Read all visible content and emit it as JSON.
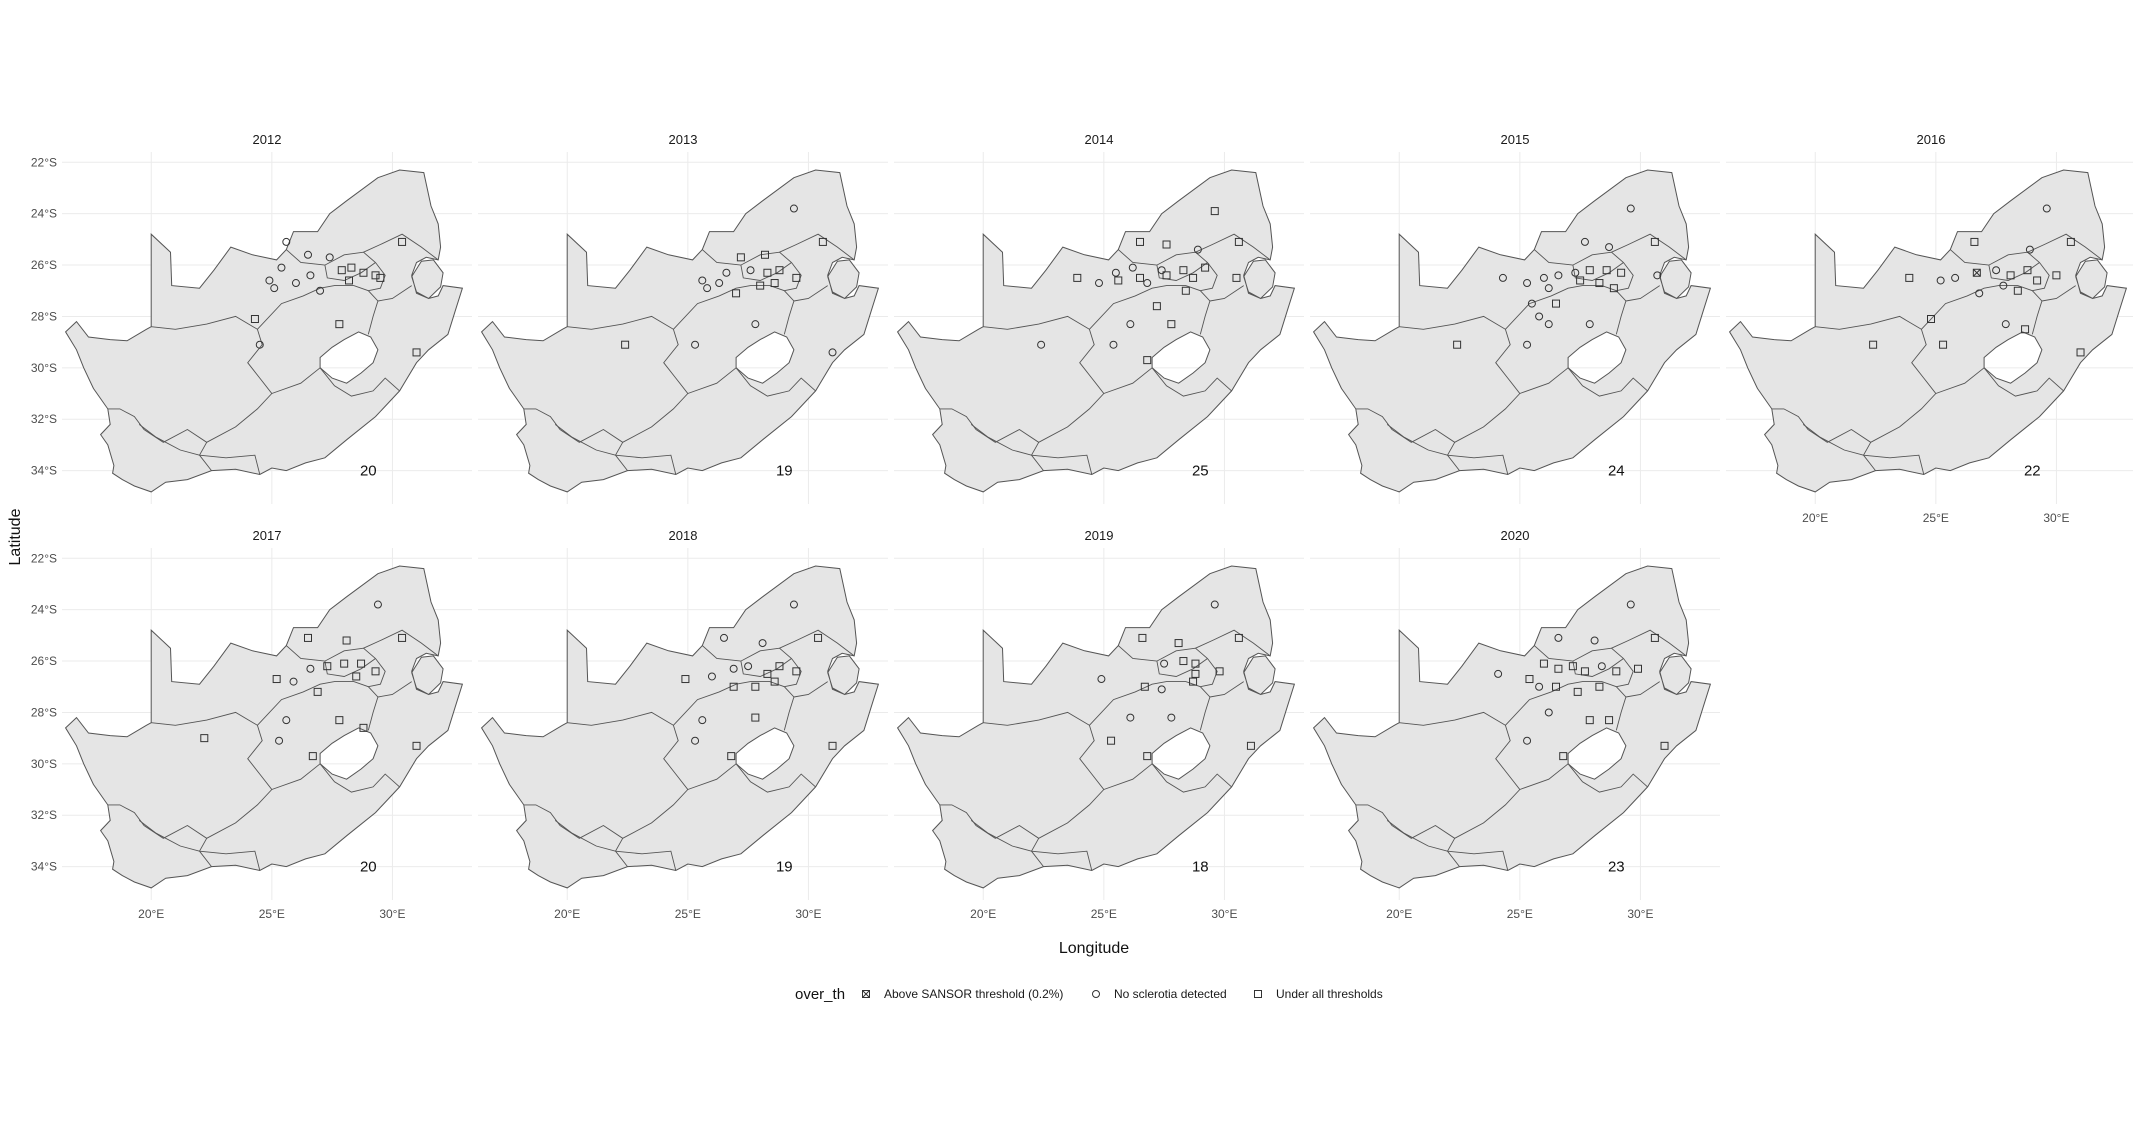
{
  "chart_data": {
    "type": "scatter",
    "subtype": "faceted-map",
    "xlabel": "Longitude",
    "ylabel": "Latitude",
    "x_ticks": [
      "20°E",
      "25°E",
      "30°E"
    ],
    "x_tick_values": [
      20,
      25,
      30
    ],
    "y_ticks": [
      "22°S",
      "24°S",
      "26°S",
      "28°S",
      "30°S",
      "32°S",
      "34°S"
    ],
    "y_tick_values": [
      -22,
      -24,
      -26,
      -28,
      -30,
      -32,
      -34
    ],
    "xlim": [
      16.3,
      33.3
    ],
    "ylim": [
      -35.3,
      -21.6
    ],
    "grid": true,
    "map_fill": "#e5e5e5",
    "map_stroke": "#555555",
    "legend": {
      "title": "over_th",
      "position": "bottom",
      "entries": [
        {
          "key": "above",
          "label": "Above SANSOR threshold (0.2%)",
          "shape": "square-x"
        },
        {
          "key": "none",
          "label": "No sclerotia detected",
          "shape": "circle"
        },
        {
          "key": "under",
          "label": "Under all thresholds",
          "shape": "square"
        }
      ]
    },
    "facets": [
      {
        "title": "2012",
        "count": "20",
        "points": [
          [
            25.6,
            -25.1,
            "none"
          ],
          [
            26.5,
            -25.6,
            "none"
          ],
          [
            27.4,
            -25.7,
            "none"
          ],
          [
            28.3,
            -26.1,
            "under"
          ],
          [
            28.2,
            -26.6,
            "under"
          ],
          [
            27.9,
            -26.2,
            "under"
          ],
          [
            29.3,
            -26.4,
            "under"
          ],
          [
            30.4,
            -25.1,
            "under"
          ],
          [
            25.4,
            -26.1,
            "none"
          ],
          [
            24.9,
            -26.6,
            "none"
          ],
          [
            25.1,
            -26.9,
            "none"
          ],
          [
            26.0,
            -26.7,
            "none"
          ],
          [
            26.6,
            -26.4,
            "none"
          ],
          [
            27.0,
            -27.0,
            "none"
          ],
          [
            24.3,
            -28.1,
            "under"
          ],
          [
            24.5,
            -29.1,
            "none"
          ],
          [
            27.8,
            -28.3,
            "under"
          ],
          [
            31.0,
            -29.4,
            "under"
          ],
          [
            28.8,
            -26.3,
            "under"
          ],
          [
            29.5,
            -26.5,
            "under"
          ]
        ]
      },
      {
        "title": "2013",
        "count": "19",
        "points": [
          [
            29.4,
            -23.8,
            "none"
          ],
          [
            27.2,
            -25.7,
            "under"
          ],
          [
            28.2,
            -25.6,
            "under"
          ],
          [
            30.6,
            -25.1,
            "under"
          ],
          [
            28.3,
            -26.3,
            "under"
          ],
          [
            27.6,
            -26.2,
            "none"
          ],
          [
            29.5,
            -26.5,
            "under"
          ],
          [
            25.6,
            -26.6,
            "none"
          ],
          [
            25.8,
            -26.9,
            "none"
          ],
          [
            26.3,
            -26.7,
            "none"
          ],
          [
            26.6,
            -26.3,
            "none"
          ],
          [
            27.0,
            -27.1,
            "under"
          ],
          [
            25.3,
            -29.1,
            "none"
          ],
          [
            27.8,
            -28.3,
            "none"
          ],
          [
            22.4,
            -29.1,
            "under"
          ],
          [
            31.0,
            -29.4,
            "none"
          ],
          [
            28.8,
            -26.2,
            "under"
          ],
          [
            28.6,
            -26.7,
            "under"
          ],
          [
            28.0,
            -26.8,
            "under"
          ]
        ]
      },
      {
        "title": "2014",
        "count": "25",
        "points": [
          [
            29.6,
            -23.9,
            "under"
          ],
          [
            26.5,
            -25.1,
            "under"
          ],
          [
            27.6,
            -25.2,
            "under"
          ],
          [
            30.6,
            -25.1,
            "under"
          ],
          [
            28.9,
            -25.4,
            "none"
          ],
          [
            23.9,
            -26.5,
            "under"
          ],
          [
            24.8,
            -26.7,
            "none"
          ],
          [
            25.5,
            -26.3,
            "none"
          ],
          [
            26.2,
            -26.1,
            "none"
          ],
          [
            26.5,
            -26.5,
            "under"
          ],
          [
            25.6,
            -26.6,
            "under"
          ],
          [
            26.8,
            -26.7,
            "none"
          ],
          [
            27.4,
            -26.2,
            "none"
          ],
          [
            27.6,
            -26.4,
            "under"
          ],
          [
            28.3,
            -26.2,
            "under"
          ],
          [
            28.7,
            -26.5,
            "under"
          ],
          [
            29.2,
            -26.1,
            "under"
          ],
          [
            30.5,
            -26.5,
            "under"
          ],
          [
            28.4,
            -27.0,
            "under"
          ],
          [
            27.2,
            -27.6,
            "under"
          ],
          [
            27.8,
            -28.3,
            "under"
          ],
          [
            26.1,
            -28.3,
            "none"
          ],
          [
            25.4,
            -29.1,
            "none"
          ],
          [
            26.8,
            -29.7,
            "under"
          ],
          [
            22.4,
            -29.1,
            "none"
          ]
        ]
      },
      {
        "title": "2015",
        "count": "24",
        "points": [
          [
            29.6,
            -23.8,
            "none"
          ],
          [
            27.7,
            -25.1,
            "none"
          ],
          [
            28.7,
            -25.3,
            "none"
          ],
          [
            30.6,
            -25.1,
            "under"
          ],
          [
            24.3,
            -26.5,
            "none"
          ],
          [
            25.3,
            -26.7,
            "none"
          ],
          [
            26.0,
            -26.5,
            "none"
          ],
          [
            26.2,
            -26.9,
            "none"
          ],
          [
            26.6,
            -26.4,
            "none"
          ],
          [
            27.3,
            -26.3,
            "none"
          ],
          [
            27.9,
            -26.2,
            "under"
          ],
          [
            28.3,
            -26.7,
            "under"
          ],
          [
            29.2,
            -26.3,
            "under"
          ],
          [
            30.7,
            -26.4,
            "none"
          ],
          [
            28.9,
            -26.9,
            "under"
          ],
          [
            25.5,
            -27.5,
            "none"
          ],
          [
            26.5,
            -27.5,
            "under"
          ],
          [
            25.8,
            -28.0,
            "none"
          ],
          [
            27.9,
            -28.3,
            "none"
          ],
          [
            26.2,
            -28.3,
            "none"
          ],
          [
            25.3,
            -29.1,
            "none"
          ],
          [
            22.4,
            -29.1,
            "under"
          ],
          [
            28.6,
            -26.2,
            "under"
          ],
          [
            27.5,
            -26.6,
            "under"
          ]
        ]
      },
      {
        "title": "2016",
        "count": "22",
        "points": [
          [
            29.6,
            -23.8,
            "none"
          ],
          [
            26.6,
            -25.1,
            "under"
          ],
          [
            30.6,
            -25.1,
            "under"
          ],
          [
            28.9,
            -25.4,
            "none"
          ],
          [
            23.9,
            -26.5,
            "under"
          ],
          [
            25.2,
            -26.6,
            "none"
          ],
          [
            25.8,
            -26.5,
            "none"
          ],
          [
            26.7,
            -26.3,
            "above"
          ],
          [
            27.5,
            -26.2,
            "none"
          ],
          [
            28.1,
            -26.4,
            "under"
          ],
          [
            28.8,
            -26.2,
            "under"
          ],
          [
            30.0,
            -26.4,
            "under"
          ],
          [
            27.8,
            -26.8,
            "none"
          ],
          [
            26.8,
            -27.1,
            "none"
          ],
          [
            28.4,
            -27.0,
            "under"
          ],
          [
            24.8,
            -28.1,
            "under"
          ],
          [
            27.9,
            -28.3,
            "none"
          ],
          [
            28.7,
            -28.5,
            "under"
          ],
          [
            25.3,
            -29.1,
            "under"
          ],
          [
            22.4,
            -29.1,
            "under"
          ],
          [
            31.0,
            -29.4,
            "under"
          ],
          [
            29.2,
            -26.6,
            "under"
          ]
        ]
      },
      {
        "title": "2017",
        "count": "20",
        "points": [
          [
            29.4,
            -23.8,
            "none"
          ],
          [
            26.5,
            -25.1,
            "under"
          ],
          [
            28.1,
            -25.2,
            "under"
          ],
          [
            30.4,
            -25.1,
            "under"
          ],
          [
            25.2,
            -26.7,
            "under"
          ],
          [
            25.9,
            -26.8,
            "none"
          ],
          [
            26.6,
            -26.3,
            "none"
          ],
          [
            27.3,
            -26.2,
            "under"
          ],
          [
            28.0,
            -26.1,
            "under"
          ],
          [
            28.5,
            -26.6,
            "under"
          ],
          [
            29.3,
            -26.4,
            "under"
          ],
          [
            28.7,
            -26.1,
            "under"
          ],
          [
            26.9,
            -27.2,
            "under"
          ],
          [
            25.6,
            -28.3,
            "none"
          ],
          [
            27.8,
            -28.3,
            "under"
          ],
          [
            25.3,
            -29.1,
            "none"
          ],
          [
            28.8,
            -28.6,
            "under"
          ],
          [
            26.7,
            -29.7,
            "under"
          ],
          [
            22.2,
            -29.0,
            "under"
          ],
          [
            31.0,
            -29.3,
            "under"
          ]
        ]
      },
      {
        "title": "2018",
        "count": "19",
        "points": [
          [
            29.4,
            -23.8,
            "none"
          ],
          [
            26.5,
            -25.1,
            "none"
          ],
          [
            28.1,
            -25.3,
            "none"
          ],
          [
            30.4,
            -25.1,
            "under"
          ],
          [
            24.9,
            -26.7,
            "under"
          ],
          [
            26.0,
            -26.6,
            "none"
          ],
          [
            26.9,
            -26.3,
            "none"
          ],
          [
            27.5,
            -26.2,
            "none"
          ],
          [
            28.3,
            -26.5,
            "under"
          ],
          [
            29.5,
            -26.4,
            "under"
          ],
          [
            26.9,
            -27.0,
            "under"
          ],
          [
            27.8,
            -27.0,
            "under"
          ],
          [
            28.6,
            -26.8,
            "under"
          ],
          [
            25.6,
            -28.3,
            "none"
          ],
          [
            27.8,
            -28.2,
            "under"
          ],
          [
            25.3,
            -29.1,
            "none"
          ],
          [
            26.8,
            -29.7,
            "under"
          ],
          [
            31.0,
            -29.3,
            "under"
          ],
          [
            28.8,
            -26.2,
            "under"
          ]
        ]
      },
      {
        "title": "2019",
        "count": "18",
        "points": [
          [
            29.6,
            -23.8,
            "none"
          ],
          [
            26.6,
            -25.1,
            "under"
          ],
          [
            28.1,
            -25.3,
            "under"
          ],
          [
            30.6,
            -25.1,
            "under"
          ],
          [
            24.9,
            -26.7,
            "none"
          ],
          [
            27.5,
            -26.1,
            "none"
          ],
          [
            28.3,
            -26.0,
            "under"
          ],
          [
            28.8,
            -26.5,
            "under"
          ],
          [
            29.8,
            -26.4,
            "under"
          ],
          [
            26.7,
            -27.0,
            "under"
          ],
          [
            27.4,
            -27.1,
            "none"
          ],
          [
            28.7,
            -26.8,
            "under"
          ],
          [
            26.1,
            -28.2,
            "none"
          ],
          [
            27.8,
            -28.2,
            "none"
          ],
          [
            25.3,
            -29.1,
            "under"
          ],
          [
            26.8,
            -29.7,
            "under"
          ],
          [
            31.1,
            -29.3,
            "under"
          ],
          [
            28.8,
            -26.1,
            "under"
          ]
        ]
      },
      {
        "title": "2020",
        "count": "23",
        "points": [
          [
            29.6,
            -23.8,
            "none"
          ],
          [
            26.6,
            -25.1,
            "none"
          ],
          [
            28.1,
            -25.2,
            "none"
          ],
          [
            30.6,
            -25.1,
            "under"
          ],
          [
            24.1,
            -26.5,
            "none"
          ],
          [
            25.4,
            -26.7,
            "under"
          ],
          [
            26.0,
            -26.1,
            "under"
          ],
          [
            26.6,
            -26.3,
            "under"
          ],
          [
            27.2,
            -26.2,
            "under"
          ],
          [
            27.7,
            -26.4,
            "under"
          ],
          [
            28.4,
            -26.2,
            "none"
          ],
          [
            29.0,
            -26.4,
            "under"
          ],
          [
            29.9,
            -26.3,
            "under"
          ],
          [
            25.8,
            -27.0,
            "none"
          ],
          [
            26.5,
            -27.0,
            "under"
          ],
          [
            27.4,
            -27.2,
            "under"
          ],
          [
            28.3,
            -27.0,
            "under"
          ],
          [
            26.2,
            -28.0,
            "none"
          ],
          [
            27.9,
            -28.3,
            "under"
          ],
          [
            28.7,
            -28.3,
            "under"
          ],
          [
            25.3,
            -29.1,
            "none"
          ],
          [
            26.8,
            -29.7,
            "under"
          ],
          [
            31.0,
            -29.3,
            "under"
          ]
        ]
      }
    ]
  }
}
